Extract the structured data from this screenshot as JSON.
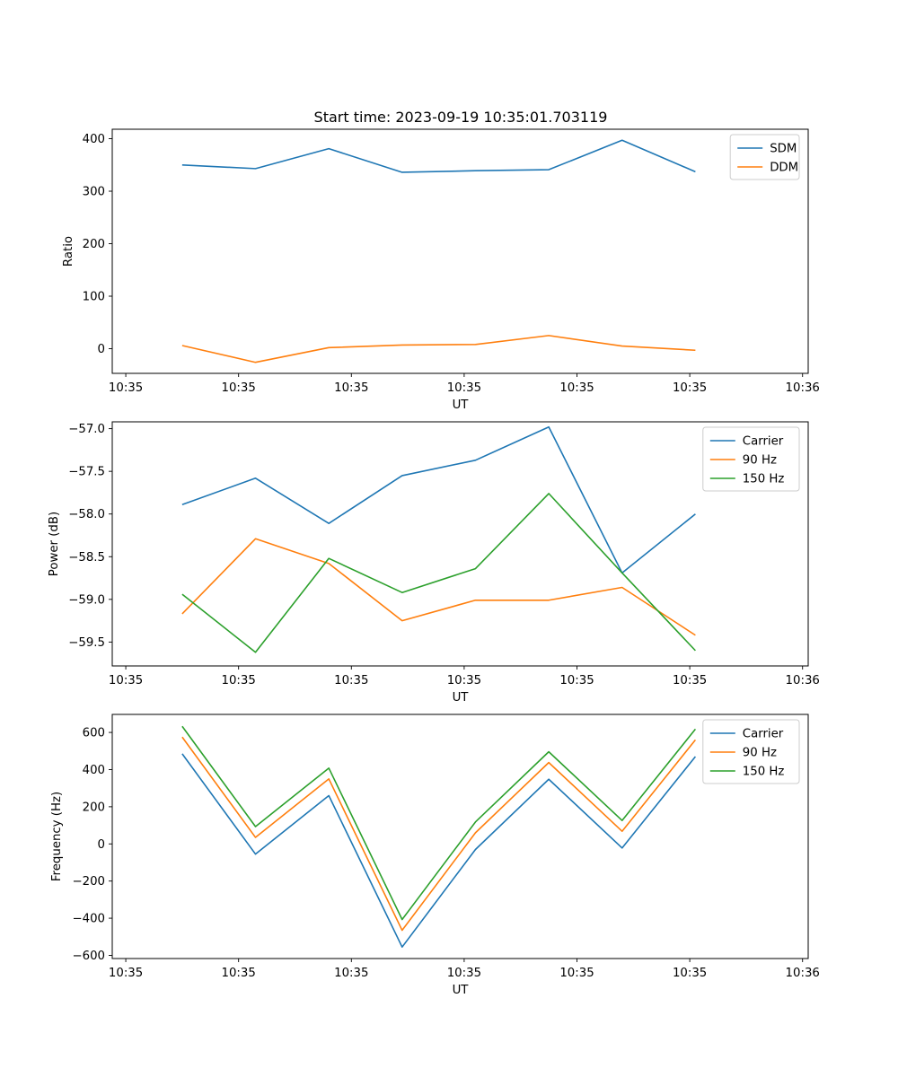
{
  "figure_title": "Start time: 2023-09-19 10:35:01.703119",
  "x_ticks": [
    "10:35",
    "10:35",
    "10:35",
    "10:35",
    "10:35",
    "10:35",
    "10:36"
  ],
  "x_tick_values": [
    0,
    1,
    2,
    3,
    4,
    5,
    6
  ],
  "chart_data": [
    {
      "type": "line",
      "title": "Start time: 2023-09-19 10:35:01.703119",
      "xlabel": "UT",
      "ylabel": "Ratio",
      "xlim": [
        -0.12,
        6.05
      ],
      "ylim": [
        -47,
        418
      ],
      "yticks": [
        0,
        100,
        200,
        300,
        400
      ],
      "ytick_labels": [
        "0",
        "100",
        "200",
        "300",
        "400"
      ],
      "legend_position": "top-right",
      "x": [
        0.5,
        1.15,
        1.8,
        2.45,
        3.1,
        3.75,
        4.4,
        5.05
      ],
      "series": [
        {
          "name": "SDM",
          "color": "#1f77b4",
          "values": [
            350,
            343,
            381,
            336,
            339,
            341,
            397,
            337
          ]
        },
        {
          "name": "DDM",
          "color": "#ff7f0e",
          "values": [
            6,
            -26,
            2,
            7,
            8,
            25,
            5,
            -3
          ]
        }
      ]
    },
    {
      "type": "line",
      "title": "",
      "xlabel": "UT",
      "ylabel": "Power (dB)",
      "xlim": [
        -0.12,
        6.05
      ],
      "ylim": [
        -59.78,
        -56.92
      ],
      "yticks": [
        -59.5,
        -59.0,
        -58.5,
        -58.0,
        -57.5,
        -57.0
      ],
      "ytick_labels": [
        "−59.5",
        "−59.0",
        "−58.5",
        "−58.0",
        "−57.5",
        "−57.0"
      ],
      "legend_position": "top-right",
      "x": [
        0.5,
        1.15,
        1.8,
        2.45,
        3.1,
        3.75,
        4.4,
        5.05
      ],
      "series": [
        {
          "name": "Carrier",
          "color": "#1f77b4",
          "values": [
            -57.89,
            -57.58,
            -58.11,
            -57.55,
            -57.37,
            -56.98,
            -58.69,
            -58.0
          ]
        },
        {
          "name": "90 Hz",
          "color": "#ff7f0e",
          "values": [
            -59.17,
            -58.29,
            -58.58,
            -59.25,
            -59.01,
            -59.01,
            -58.86,
            -59.42
          ]
        },
        {
          "name": "150 Hz",
          "color": "#2ca02c",
          "values": [
            -58.94,
            -59.62,
            -58.52,
            -58.92,
            -58.64,
            -57.76,
            -58.69,
            -59.6
          ]
        }
      ]
    },
    {
      "type": "line",
      "title": "",
      "xlabel": "UT",
      "ylabel": "Frequency (Hz)",
      "xlim": [
        -0.12,
        6.05
      ],
      "ylim": [
        -617,
        697
      ],
      "yticks": [
        -600,
        -400,
        -200,
        0,
        200,
        400,
        600
      ],
      "ytick_labels": [
        "−600",
        "−400",
        "−200",
        "0",
        "200",
        "400",
        "600"
      ],
      "legend_position": "top-right",
      "x": [
        0.5,
        1.15,
        1.8,
        2.45,
        3.1,
        3.75,
        4.4,
        5.05
      ],
      "series": [
        {
          "name": "Carrier",
          "color": "#1f77b4",
          "values": [
            485,
            -55,
            260,
            -555,
            -30,
            348,
            -22,
            470
          ]
        },
        {
          "name": "90 Hz",
          "color": "#ff7f0e",
          "values": [
            575,
            35,
            350,
            -465,
            60,
            438,
            68,
            560
          ]
        },
        {
          "name": "150 Hz",
          "color": "#2ca02c",
          "values": [
            633,
            93,
            408,
            -407,
            118,
            496,
            126,
            618
          ]
        }
      ]
    }
  ]
}
